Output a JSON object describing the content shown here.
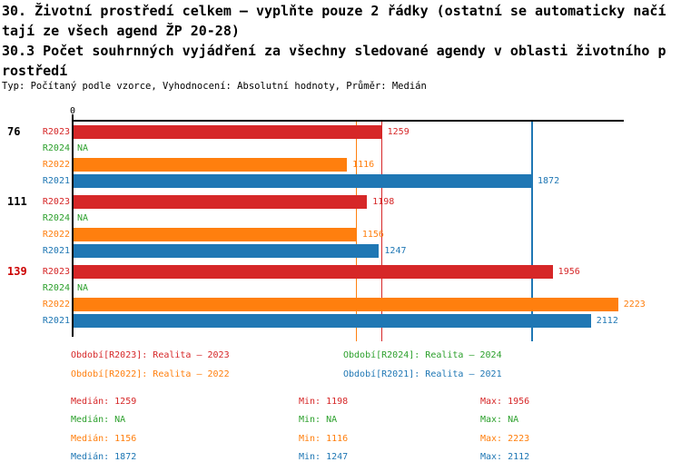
{
  "header": {
    "title1": "30. Životní prostředí celkem – vyplňte pouze 2 řádky (ostatní se automaticky načítají ze všech agend ŽP 20-28)",
    "title2": "30.3 Počet souhrnných vyjádření za všechny sledované agendy v oblasti životního prostředí",
    "meta": "Typ: Počítaný podle vzorce, Vyhodnocení: Absolutní hodnoty, Průměr: Medián"
  },
  "colors": {
    "r2023": "#d62728",
    "r2024": "#2ca02c",
    "r2022": "#ff7f0e",
    "r2021": "#1f77b4",
    "axis": "#000000",
    "group_highlight": "#cc0000",
    "group_normal": "#000000"
  },
  "chart_data": {
    "type": "bar",
    "orientation": "horizontal",
    "title": "",
    "xlabel": "",
    "ylabel": "",
    "xlim": [
      0,
      2250
    ],
    "x_tick_labels": [
      "0"
    ],
    "grid": false,
    "series_order": [
      "R2023",
      "R2024",
      "R2022",
      "R2021"
    ],
    "groups": [
      {
        "label": "76",
        "label_color": "#000000",
        "rows": [
          {
            "series": "R2023",
            "value": 1259,
            "display": "1259",
            "color": "#d62728"
          },
          {
            "series": "R2024",
            "value": null,
            "display": "NA",
            "color": "#2ca02c"
          },
          {
            "series": "R2022",
            "value": 1116,
            "display": "1116",
            "color": "#ff7f0e"
          },
          {
            "series": "R2021",
            "value": 1872,
            "display": "1872",
            "color": "#1f77b4"
          }
        ]
      },
      {
        "label": "111",
        "label_color": "#000000",
        "rows": [
          {
            "series": "R2023",
            "value": 1198,
            "display": "1198",
            "color": "#d62728"
          },
          {
            "series": "R2024",
            "value": null,
            "display": "NA",
            "color": "#2ca02c"
          },
          {
            "series": "R2022",
            "value": 1156,
            "display": "1156",
            "color": "#ff7f0e"
          },
          {
            "series": "R2021",
            "value": 1247,
            "display": "1247",
            "color": "#1f77b4"
          }
        ]
      },
      {
        "label": "139",
        "label_color": "#cc0000",
        "rows": [
          {
            "series": "R2023",
            "value": 1956,
            "display": "1956",
            "color": "#d62728"
          },
          {
            "series": "R2024",
            "value": null,
            "display": "NA",
            "color": "#2ca02c"
          },
          {
            "series": "R2022",
            "value": 2223,
            "display": "2223",
            "color": "#ff7f0e"
          },
          {
            "series": "R2021",
            "value": 2112,
            "display": "2112",
            "color": "#1f77b4"
          }
        ]
      }
    ],
    "median_lines": [
      {
        "series": "R2023",
        "value": 1259,
        "color": "#d62728"
      },
      {
        "series": "R2022",
        "value": 1156,
        "color": "#ff7f0e"
      },
      {
        "series": "R2021",
        "value": 1872,
        "color": "#1f77b4"
      }
    ]
  },
  "legend": [
    {
      "text": "Období[R2023]: Realita – 2023",
      "color": "#d62728",
      "col": 0,
      "row": 0
    },
    {
      "text": "Období[R2022]: Realita – 2022",
      "color": "#ff7f0e",
      "col": 0,
      "row": 1
    },
    {
      "text": "Období[R2024]: Realita – 2024",
      "color": "#2ca02c",
      "col": 1,
      "row": 0
    },
    {
      "text": "Období[R2021]: Realita – 2021",
      "color": "#1f77b4",
      "col": 1,
      "row": 1
    }
  ],
  "stats": {
    "rows": [
      {
        "color": "#d62728",
        "median": "Medián: 1259",
        "min": "Min: 1198",
        "max": "Max: 1956"
      },
      {
        "color": "#2ca02c",
        "median": "Medián: NA",
        "min": "Min: NA",
        "max": "Max: NA"
      },
      {
        "color": "#ff7f0e",
        "median": "Medián: 1156",
        "min": "Min: 1116",
        "max": "Max: 2223"
      },
      {
        "color": "#1f77b4",
        "median": "Medián: 1872",
        "min": "Min: 1247",
        "max": "Max: 2112"
      }
    ]
  }
}
